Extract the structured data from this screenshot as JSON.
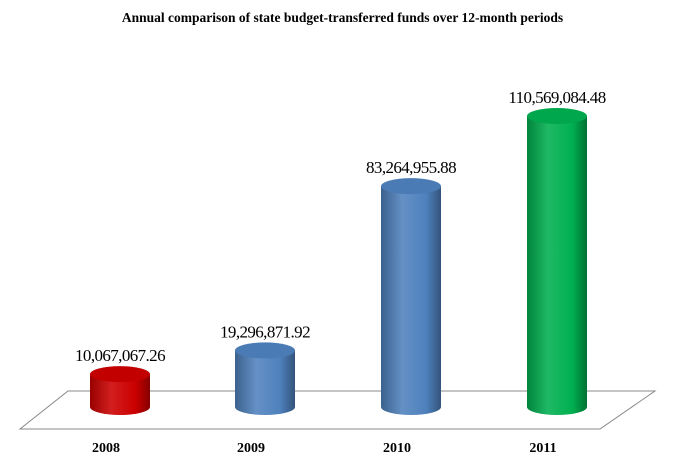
{
  "chart_data": {
    "type": "bar",
    "subtype": "3d-cylinder",
    "title": "Annual comparison of state budget-transferred funds over 12-month periods",
    "xlabel": "",
    "ylabel": "",
    "categories": [
      "2008",
      "2009",
      "2010",
      "2011"
    ],
    "values": [
      10067067.26,
      19296871.92,
      83264955.88,
      110569084.48
    ],
    "data_labels": [
      "10,067,067.26",
      "19,296,871.92",
      "83,264,955.88",
      "110,569,084.48"
    ],
    "colors": [
      "#cc0000",
      "#4f81bd",
      "#4f81bd",
      "#00b050"
    ],
    "ylim": [
      0,
      110569084.48
    ],
    "grid": false,
    "legend": "none"
  }
}
